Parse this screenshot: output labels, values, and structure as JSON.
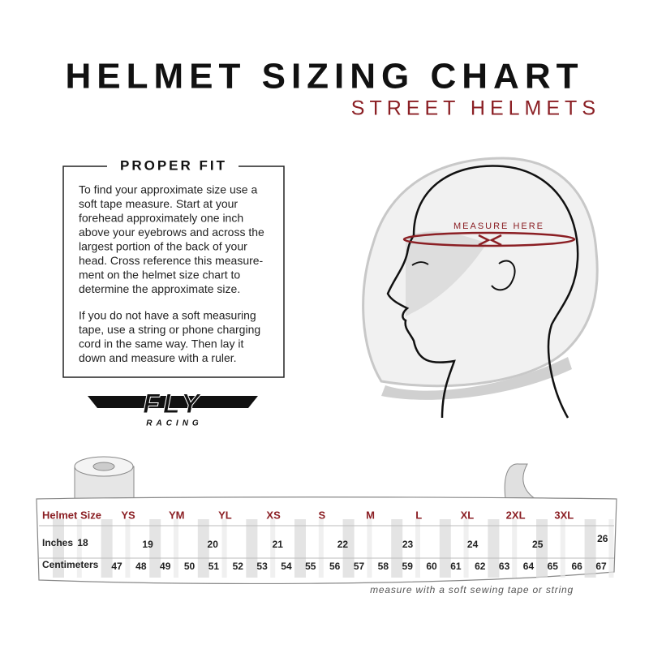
{
  "header": {
    "title": "HELMET SIZING CHART",
    "subtitle": "STREET HELMETS"
  },
  "fit_box": {
    "heading": "PROPER FIT",
    "paragraphs": [
      [
        "To find your approximate size use a",
        "soft tape measure. Start at your",
        "forehead approximately one inch",
        "above your eyebrows and across the",
        "largest portion of the back of your",
        "head. Cross reference this measure-",
        "ment on the helmet size chart to",
        "determine the approximate size."
      ],
      [
        "If you do not have a soft measuring",
        "tape, use a string or phone charging",
        "cord in the same way. Then lay it",
        "down and measure with a ruler."
      ]
    ]
  },
  "illustration": {
    "label": "MEASURE HERE"
  },
  "logo": {
    "brand": "FLY",
    "tagline": "RACING"
  },
  "tape": {
    "sizes": {
      "label": "Helmet Size",
      "items": [
        "YS",
        "YM",
        "YL",
        "XS",
        "S",
        "M",
        "L",
        "XL",
        "2XL",
        "3XL"
      ]
    },
    "inches": {
      "label": "Inches",
      "items": [
        18,
        19,
        20,
        21,
        22,
        23,
        24,
        25,
        26
      ]
    },
    "centimeters": {
      "label": "Centimeters",
      "items": [
        47,
        48,
        49,
        50,
        51,
        52,
        53,
        54,
        55,
        56,
        57,
        58,
        59,
        60,
        61,
        62,
        63,
        64,
        65,
        66,
        67
      ]
    }
  },
  "footnote": "measure with a soft sewing tape or string"
}
